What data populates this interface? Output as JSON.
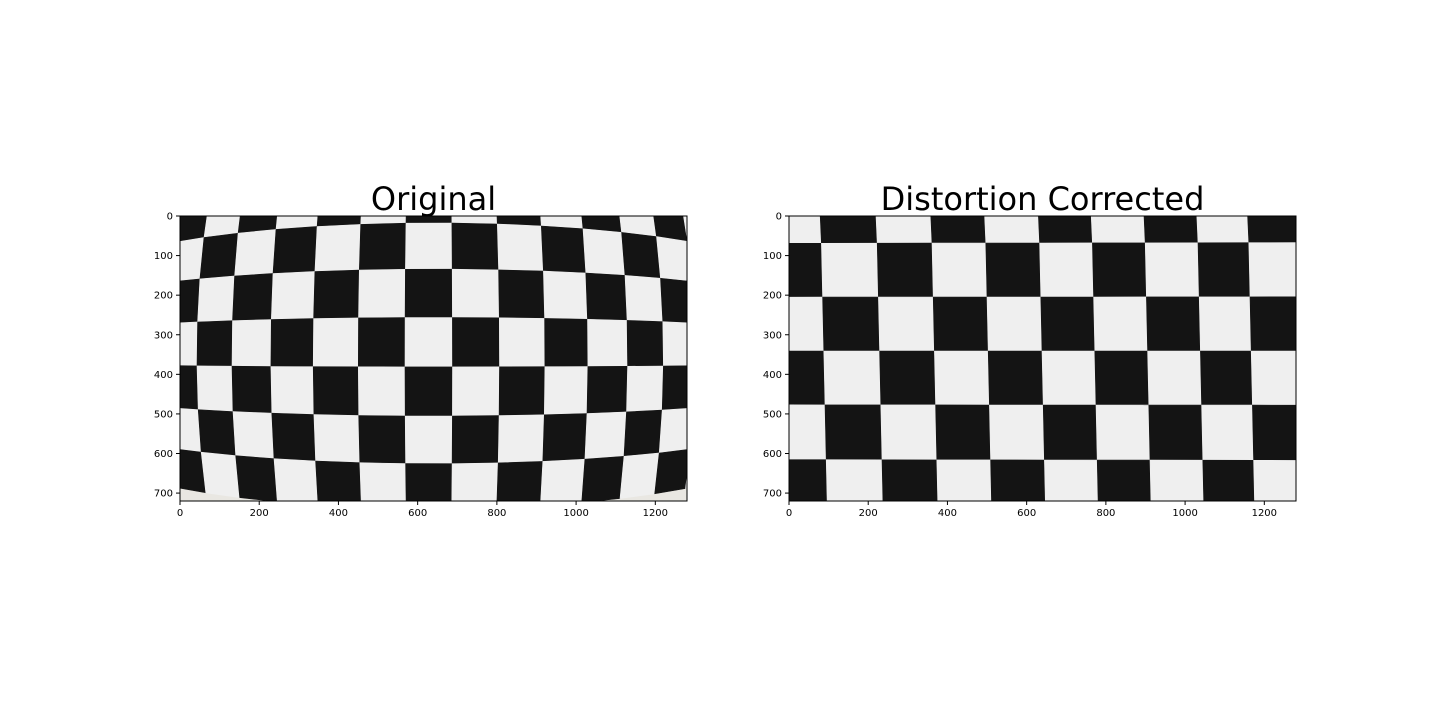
{
  "figure": {
    "panels": [
      {
        "title": "Original",
        "image": "distorted-checkerboard",
        "x_ticks": [
          "0",
          "200",
          "400",
          "600",
          "800",
          "1000",
          "1200"
        ],
        "y_ticks": [
          "0",
          "100",
          "200",
          "300",
          "400",
          "500",
          "600",
          "700"
        ]
      },
      {
        "title": "Distortion Corrected",
        "image": "undistorted-checkerboard",
        "x_ticks": [
          "0",
          "200",
          "400",
          "600",
          "800",
          "1000",
          "1200"
        ],
        "y_ticks": [
          "0",
          "100",
          "200",
          "300",
          "400",
          "500",
          "600",
          "700"
        ]
      }
    ]
  },
  "colors": {
    "square_dark": "#141414",
    "square_light": "#efefef",
    "frame": "#000000"
  }
}
